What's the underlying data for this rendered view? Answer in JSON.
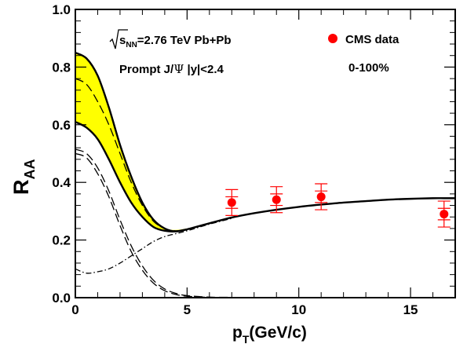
{
  "chart_data": {
    "type": "line",
    "xlabel": {
      "main": "p",
      "sub": "T",
      "rest": "(GeV/c)"
    },
    "ylabel": {
      "main": "R",
      "sub": "AA"
    },
    "xlim": [
      0,
      17
    ],
    "ylim": [
      0,
      1.0
    ],
    "x_ticks": [
      0,
      5,
      10,
      15
    ],
    "x_tick_labels": [
      "0",
      "5",
      "10",
      "15"
    ],
    "y_ticks": [
      0,
      0.2,
      0.4,
      0.6,
      0.8,
      1.0
    ],
    "y_tick_labels": [
      "0.0",
      "0.2",
      "0.4",
      "0.6",
      "0.8",
      "1.0"
    ],
    "annotations": {
      "energy": {
        "sqrt_part": "s",
        "sub": "NN",
        "rest": "=2.76 TeV Pb+Pb"
      },
      "particle": {
        "prefix": "Prompt J/",
        "psi": "Ψ",
        "suffix": " |y|<2.4"
      },
      "centrality": "0-100%"
    },
    "legend": {
      "label": "CMS data",
      "placement": "top-right"
    },
    "colors": {
      "band_fill": "#ffff00",
      "data_points": "#ff0000",
      "lines": "#000000"
    },
    "band": {
      "x": [
        0,
        0.5,
        1,
        1.5,
        2,
        2.5,
        3,
        3.5,
        4,
        4.5,
        5
      ],
      "upper": [
        0.85,
        0.83,
        0.77,
        0.66,
        0.53,
        0.42,
        0.33,
        0.27,
        0.24,
        0.235,
        0.24
      ],
      "lower": [
        0.61,
        0.59,
        0.55,
        0.48,
        0.4,
        0.33,
        0.28,
        0.245,
        0.232,
        0.23,
        0.237
      ]
    },
    "series": [
      {
        "style": "solid",
        "x": [
          0,
          0.5,
          1,
          1.5,
          2,
          2.5,
          3,
          3.5,
          4,
          4.5,
          5,
          6,
          7,
          8,
          9,
          10,
          11,
          12,
          13,
          14,
          15,
          16,
          16.5,
          17
        ],
        "y": [
          0.85,
          0.83,
          0.77,
          0.66,
          0.53,
          0.42,
          0.33,
          0.27,
          0.24,
          0.23,
          0.237,
          0.258,
          0.278,
          0.293,
          0.305,
          0.315,
          0.323,
          0.33,
          0.335,
          0.34,
          0.343,
          0.345,
          0.345,
          0.345
        ]
      },
      {
        "style": "solid",
        "x": [
          0,
          0.5,
          1,
          1.5,
          2,
          2.5,
          3,
          3.5,
          4,
          4.5,
          5
        ],
        "y": [
          0.61,
          0.59,
          0.55,
          0.48,
          0.4,
          0.33,
          0.28,
          0.245,
          0.232,
          0.23,
          0.237
        ]
      },
      {
        "style": "dashed",
        "x": [
          0,
          0.5,
          1,
          1.5,
          2,
          2.5,
          3,
          3.5,
          4,
          4.5,
          5
        ],
        "y": [
          0.76,
          0.74,
          0.68,
          0.6,
          0.5,
          0.4,
          0.32,
          0.265,
          0.24,
          0.232,
          0.237
        ]
      },
      {
        "style": "dashed",
        "x": [
          0,
          0.5,
          1,
          1.5,
          2,
          2.5,
          3,
          3.5,
          4,
          4.5,
          5,
          6,
          7,
          8,
          10,
          12,
          14,
          17
        ],
        "y": [
          0.515,
          0.5,
          0.45,
          0.37,
          0.27,
          0.18,
          0.11,
          0.06,
          0.03,
          0.015,
          0.007,
          0.002,
          0.001,
          0,
          0,
          0,
          0,
          0
        ]
      },
      {
        "style": "dashed",
        "x": [
          0,
          0.5,
          1,
          1.5,
          2,
          2.5,
          3,
          3.5,
          4,
          4.5,
          5,
          6,
          7,
          8,
          10,
          12,
          14,
          17
        ],
        "y": [
          0.5,
          0.485,
          0.43,
          0.35,
          0.25,
          0.16,
          0.095,
          0.05,
          0.024,
          0.011,
          0.005,
          0.001,
          0,
          0,
          0,
          0,
          0,
          0
        ]
      },
      {
        "style": "dashdot",
        "x": [
          0,
          0.5,
          1,
          1.5,
          2,
          2.5,
          3,
          3.5,
          4,
          4.5,
          5,
          6,
          7
        ],
        "y": [
          0.1,
          0.085,
          0.09,
          0.1,
          0.12,
          0.145,
          0.17,
          0.195,
          0.212,
          0.222,
          0.232,
          0.255,
          0.275
        ]
      }
    ],
    "data_points": [
      {
        "x": 7.0,
        "y": 0.33,
        "stat_err": 0.02,
        "syst_err": 0.045
      },
      {
        "x": 9.0,
        "y": 0.34,
        "stat_err": 0.02,
        "syst_err": 0.045
      },
      {
        "x": 11.0,
        "y": 0.35,
        "stat_err": 0.02,
        "syst_err": 0.045
      },
      {
        "x": 16.5,
        "y": 0.29,
        "stat_err": 0.02,
        "syst_err": 0.045
      }
    ]
  }
}
